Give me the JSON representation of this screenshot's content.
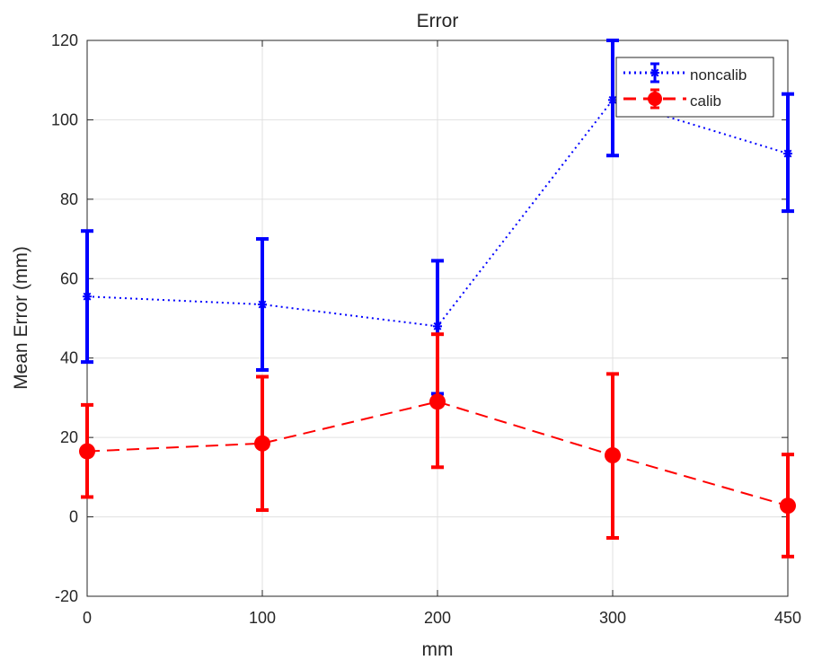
{
  "chart_data": {
    "type": "line",
    "title": "Error",
    "xlabel": "mm",
    "ylabel": "Mean Error (mm)",
    "categories": [
      "0",
      "100",
      "200",
      "300",
      "450"
    ],
    "ylim": [
      -20,
      120
    ],
    "yticks": [
      -20,
      0,
      20,
      40,
      60,
      80,
      100,
      120
    ],
    "grid": true,
    "legend_position": "top-right",
    "series": [
      {
        "name": "noncalib",
        "color": "#0000ff",
        "line_style": "dotted",
        "marker": "asterisk",
        "values": [
          55.5,
          53.5,
          48,
          105,
          91.5
        ],
        "err_low": [
          39,
          37,
          31,
          91,
          77
        ],
        "err_high": [
          72,
          70,
          64.5,
          120,
          106.5
        ]
      },
      {
        "name": "calib",
        "color": "#ff0000",
        "line_style": "dashed",
        "marker": "circle",
        "values": [
          16.5,
          18.5,
          29,
          15.5,
          2.8
        ],
        "err_low": [
          5,
          1.7,
          12.5,
          -5.3,
          -10
        ],
        "err_high": [
          28.2,
          35.3,
          46,
          36,
          15.7
        ]
      }
    ]
  }
}
